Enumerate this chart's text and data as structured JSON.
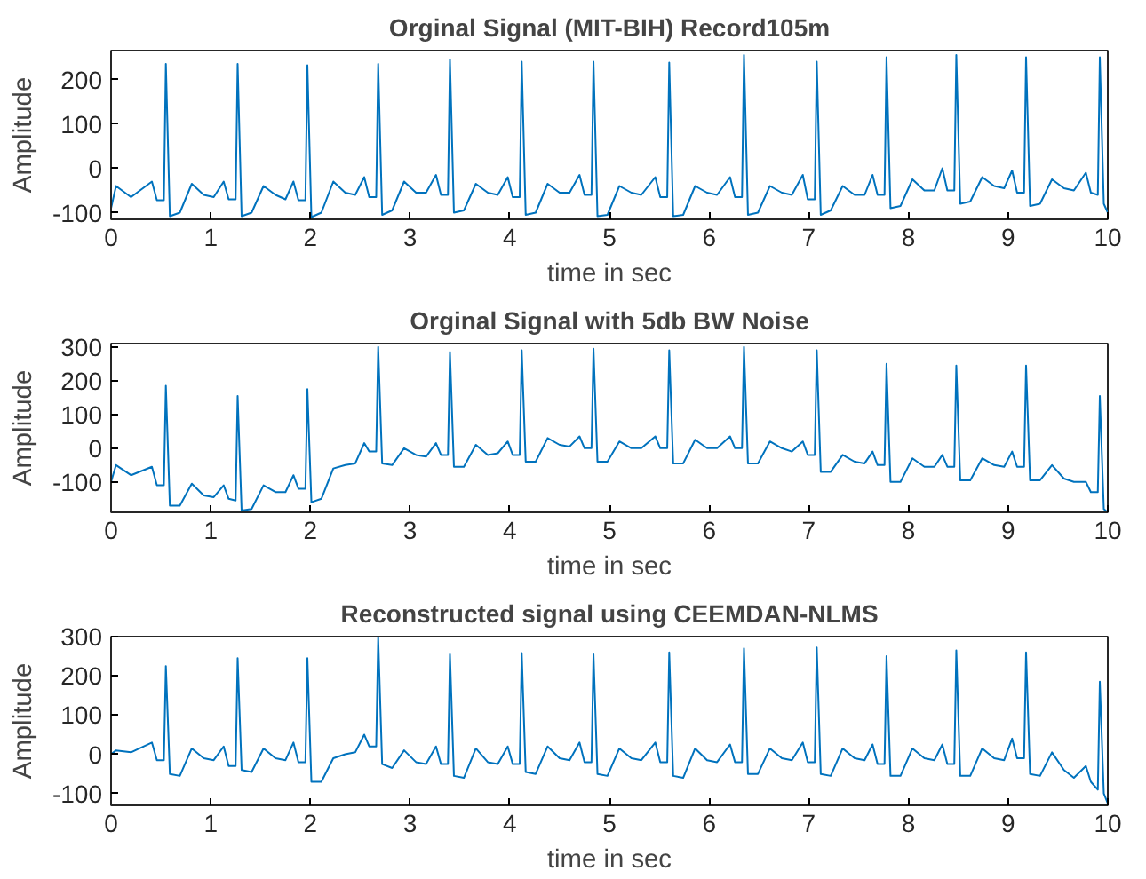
{
  "chart_data": [
    {
      "type": "line",
      "title": "Orginal Signal (MIT-BIH) Record105m",
      "xlabel": "time in sec",
      "ylabel": "Amplitude",
      "xlim": [
        0,
        10
      ],
      "ylim": [
        -115,
        265
      ],
      "xticks": [
        0,
        1,
        2,
        3,
        4,
        5,
        6,
        7,
        8,
        9,
        10
      ],
      "yticks": [
        -100,
        0,
        100,
        200
      ],
      "x": [
        0,
        0.05,
        0.2,
        0.41,
        0.46,
        0.53,
        0.55,
        0.59,
        0.69,
        0.81,
        0.93,
        1.03,
        1.13,
        1.18,
        1.25,
        1.27,
        1.31,
        1.41,
        1.53,
        1.65,
        1.75,
        1.83,
        1.88,
        1.95,
        1.97,
        2.01,
        2.11,
        2.23,
        2.35,
        2.45,
        2.54,
        2.59,
        2.66,
        2.68,
        2.72,
        2.82,
        2.94,
        3.06,
        3.16,
        3.26,
        3.31,
        3.38,
        3.4,
        3.44,
        3.54,
        3.66,
        3.78,
        3.88,
        3.98,
        4.03,
        4.1,
        4.12,
        4.16,
        4.26,
        4.38,
        4.5,
        4.6,
        4.7,
        4.75,
        4.82,
        4.84,
        4.88,
        4.98,
        5.1,
        5.22,
        5.32,
        5.46,
        5.51,
        5.58,
        5.6,
        5.64,
        5.74,
        5.86,
        5.98,
        6.08,
        6.21,
        6.26,
        6.33,
        6.35,
        6.39,
        6.49,
        6.61,
        6.73,
        6.83,
        6.94,
        6.99,
        7.06,
        7.08,
        7.12,
        7.22,
        7.34,
        7.46,
        7.56,
        7.64,
        7.69,
        7.76,
        7.78,
        7.82,
        7.92,
        8.04,
        8.16,
        8.26,
        8.34,
        8.39,
        8.46,
        8.48,
        8.52,
        8.62,
        8.74,
        8.86,
        8.96,
        9.04,
        9.09,
        9.16,
        9.18,
        9.22,
        9.32,
        9.44,
        9.56,
        9.66,
        9.78,
        9.83,
        9.9,
        9.92,
        9.96,
        10.0
      ],
      "series": [
        {
          "color": "#0072bd",
          "values": [
            -90,
            -40,
            -65,
            -30,
            -72,
            -72,
            235,
            -108,
            -100,
            -35,
            -60,
            -65,
            -30,
            -70,
            -70,
            235,
            -108,
            -100,
            -40,
            -60,
            -70,
            -30,
            -72,
            -72,
            232,
            -110,
            -100,
            -30,
            -55,
            -60,
            -20,
            -65,
            -65,
            235,
            -105,
            -95,
            -30,
            -55,
            -55,
            -15,
            -60,
            -60,
            245,
            -100,
            -95,
            -35,
            -55,
            -60,
            -20,
            -65,
            -65,
            240,
            -105,
            -100,
            -35,
            -55,
            -55,
            -15,
            -60,
            -60,
            240,
            -108,
            -105,
            -40,
            -55,
            -60,
            -20,
            -65,
            -65,
            238,
            -108,
            -105,
            -40,
            -55,
            -60,
            -20,
            -65,
            -65,
            255,
            -105,
            -100,
            -40,
            -55,
            -60,
            -15,
            -70,
            -70,
            240,
            -105,
            -95,
            -40,
            -60,
            -60,
            -15,
            -60,
            -60,
            250,
            -90,
            -85,
            -25,
            -50,
            -50,
            0,
            -50,
            -50,
            255,
            -80,
            -75,
            -20,
            -40,
            -45,
            -5,
            -55,
            -55,
            250,
            -85,
            -80,
            -25,
            -45,
            -50,
            -10,
            -55,
            -60,
            250,
            -80,
            -100
          ]
        }
      ]
    },
    {
      "type": "line",
      "title": "Orginal Signal with 5db BW Noise",
      "xlabel": "time in sec",
      "ylabel": "Amplitude",
      "xlim": [
        0,
        10
      ],
      "ylim": [
        -190,
        310
      ],
      "xticks": [
        0,
        1,
        2,
        3,
        4,
        5,
        6,
        7,
        8,
        9,
        10
      ],
      "yticks": [
        -100,
        0,
        100,
        200,
        300
      ],
      "x": [
        0,
        0.05,
        0.2,
        0.41,
        0.46,
        0.53,
        0.55,
        0.59,
        0.69,
        0.81,
        0.93,
        1.03,
        1.13,
        1.18,
        1.25,
        1.27,
        1.31,
        1.41,
        1.53,
        1.65,
        1.75,
        1.83,
        1.88,
        1.95,
        1.97,
        2.01,
        2.11,
        2.23,
        2.35,
        2.45,
        2.54,
        2.59,
        2.66,
        2.68,
        2.72,
        2.82,
        2.94,
        3.06,
        3.16,
        3.26,
        3.31,
        3.38,
        3.4,
        3.44,
        3.54,
        3.66,
        3.78,
        3.88,
        3.98,
        4.03,
        4.1,
        4.12,
        4.16,
        4.26,
        4.38,
        4.5,
        4.6,
        4.7,
        4.75,
        4.82,
        4.84,
        4.88,
        4.98,
        5.1,
        5.22,
        5.32,
        5.46,
        5.51,
        5.58,
        5.6,
        5.64,
        5.74,
        5.86,
        5.98,
        6.08,
        6.21,
        6.26,
        6.33,
        6.35,
        6.39,
        6.49,
        6.61,
        6.73,
        6.83,
        6.94,
        6.99,
        7.06,
        7.08,
        7.12,
        7.22,
        7.34,
        7.46,
        7.56,
        7.64,
        7.69,
        7.76,
        7.78,
        7.82,
        7.92,
        8.04,
        8.16,
        8.26,
        8.34,
        8.39,
        8.46,
        8.48,
        8.52,
        8.62,
        8.74,
        8.86,
        8.96,
        9.04,
        9.09,
        9.16,
        9.18,
        9.22,
        9.32,
        9.44,
        9.56,
        9.66,
        9.78,
        9.83,
        9.9,
        9.92,
        9.96,
        10.0
      ],
      "series": [
        {
          "color": "#0072bd",
          "values": [
            -100,
            -50,
            -80,
            -55,
            -110,
            -110,
            185,
            -170,
            -170,
            -105,
            -140,
            -145,
            -110,
            -150,
            -155,
            155,
            -185,
            -180,
            -110,
            -130,
            -130,
            -80,
            -120,
            -120,
            175,
            -160,
            -150,
            -60,
            -50,
            -45,
            15,
            -10,
            -10,
            300,
            -45,
            -50,
            0,
            -20,
            -25,
            15,
            -20,
            -20,
            285,
            -55,
            -55,
            10,
            -20,
            -15,
            20,
            -20,
            -20,
            290,
            -40,
            -40,
            30,
            10,
            5,
            35,
            0,
            0,
            295,
            -40,
            -40,
            20,
            0,
            0,
            35,
            0,
            0,
            290,
            -45,
            -45,
            25,
            0,
            0,
            35,
            0,
            0,
            300,
            -45,
            -45,
            20,
            0,
            -10,
            20,
            -20,
            -20,
            290,
            -70,
            -70,
            -20,
            -40,
            -45,
            -10,
            -50,
            -50,
            250,
            -100,
            -100,
            -30,
            -55,
            -55,
            -20,
            -55,
            -55,
            245,
            -95,
            -95,
            -30,
            -50,
            -55,
            -10,
            -55,
            -55,
            245,
            -95,
            -95,
            -50,
            -90,
            -100,
            -100,
            -130,
            -130,
            155,
            -180,
            -190
          ]
        }
      ]
    },
    {
      "type": "line",
      "title": "Reconstructed signal using CEEMDAN-NLMS",
      "xlabel": "time in sec",
      "ylabel": "Amplitude",
      "xlim": [
        0,
        10
      ],
      "ylim": [
        -130,
        300
      ],
      "xticks": [
        0,
        1,
        2,
        3,
        4,
        5,
        6,
        7,
        8,
        9,
        10
      ],
      "yticks": [
        -100,
        0,
        100,
        200,
        300
      ],
      "x": [
        0,
        0.05,
        0.2,
        0.41,
        0.46,
        0.53,
        0.55,
        0.59,
        0.69,
        0.81,
        0.93,
        1.03,
        1.13,
        1.18,
        1.25,
        1.27,
        1.31,
        1.41,
        1.53,
        1.65,
        1.75,
        1.83,
        1.88,
        1.95,
        1.97,
        2.01,
        2.11,
        2.23,
        2.35,
        2.45,
        2.54,
        2.59,
        2.66,
        2.68,
        2.72,
        2.82,
        2.94,
        3.06,
        3.16,
        3.26,
        3.31,
        3.38,
        3.4,
        3.44,
        3.54,
        3.66,
        3.78,
        3.88,
        3.98,
        4.03,
        4.1,
        4.12,
        4.16,
        4.26,
        4.38,
        4.5,
        4.6,
        4.7,
        4.75,
        4.82,
        4.84,
        4.88,
        4.98,
        5.1,
        5.22,
        5.32,
        5.46,
        5.51,
        5.58,
        5.6,
        5.64,
        5.74,
        5.86,
        5.98,
        6.08,
        6.21,
        6.26,
        6.33,
        6.35,
        6.39,
        6.49,
        6.61,
        6.73,
        6.83,
        6.94,
        6.99,
        7.06,
        7.08,
        7.12,
        7.22,
        7.34,
        7.46,
        7.56,
        7.64,
        7.69,
        7.76,
        7.78,
        7.82,
        7.92,
        8.04,
        8.16,
        8.26,
        8.34,
        8.39,
        8.46,
        8.48,
        8.52,
        8.62,
        8.74,
        8.86,
        8.96,
        9.04,
        9.09,
        9.16,
        9.18,
        9.22,
        9.32,
        9.44,
        9.56,
        9.66,
        9.78,
        9.83,
        9.9,
        9.92,
        9.96,
        10.0
      ],
      "series": [
        {
          "color": "#0072bd",
          "values": [
            0,
            10,
            5,
            30,
            -15,
            -15,
            225,
            -50,
            -55,
            15,
            -10,
            -15,
            20,
            -30,
            -30,
            245,
            -40,
            -45,
            15,
            -10,
            -15,
            30,
            -20,
            -20,
            245,
            -70,
            -70,
            -10,
            0,
            5,
            50,
            20,
            20,
            298,
            -25,
            -35,
            10,
            -20,
            -25,
            20,
            -25,
            -25,
            255,
            -55,
            -60,
            15,
            -20,
            -25,
            20,
            -25,
            -25,
            258,
            -45,
            -50,
            20,
            -10,
            -15,
            30,
            -20,
            -20,
            255,
            -50,
            -55,
            15,
            -10,
            -15,
            30,
            -20,
            -20,
            260,
            -55,
            -60,
            15,
            -15,
            -20,
            25,
            -20,
            -20,
            270,
            -50,
            -50,
            15,
            -10,
            -15,
            30,
            -20,
            -20,
            272,
            -50,
            -55,
            15,
            -10,
            -15,
            25,
            -25,
            -25,
            250,
            -55,
            -55,
            15,
            -10,
            -15,
            25,
            -25,
            -25,
            265,
            -55,
            -55,
            15,
            -10,
            -15,
            40,
            -10,
            -10,
            260,
            -50,
            -55,
            5,
            -40,
            -60,
            -30,
            -70,
            -90,
            185,
            -100,
            -125
          ]
        }
      ]
    }
  ]
}
